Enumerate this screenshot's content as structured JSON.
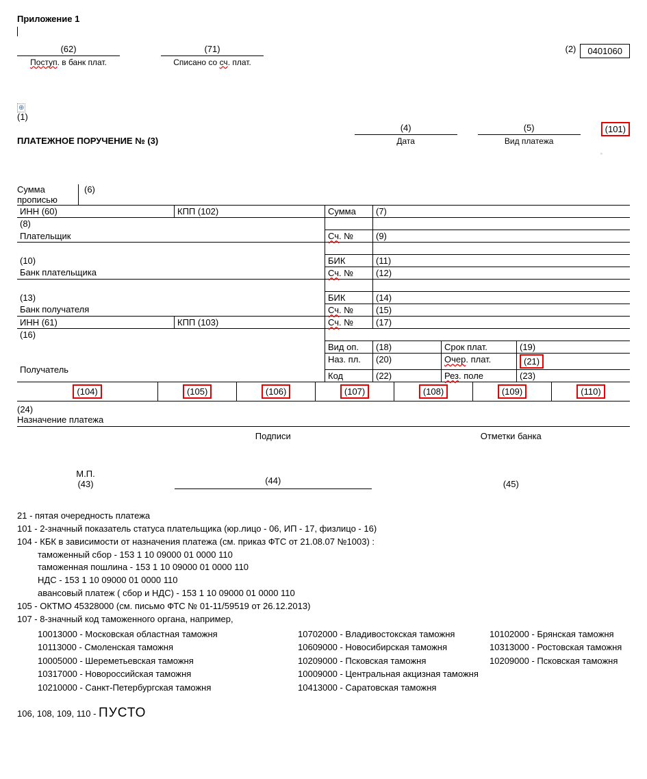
{
  "appendix": "Приложение 1",
  "top": {
    "f62": "(62)",
    "f62_label": "Поступ. в банк плат.",
    "f71": "(71)",
    "f71_label": "Списано со сч. плат.",
    "f2": "(2)",
    "code": "0401060"
  },
  "pp": {
    "num1": "(1)",
    "title": "ПЛАТЕЖНОЕ ПОРУЧЕНИЕ № (3)",
    "f4": "(4)",
    "date_label": "Дата",
    "f5": "(5)",
    "type_label": "Вид платежа",
    "f101": "(101)"
  },
  "form": {
    "sum_label": "Сумма прописью",
    "f6": "(6)",
    "inn60": "ИНН  (60)",
    "kpp102": "КПП (102)",
    "sum": "Сумма",
    "f7": "(7)",
    "f8": "(8)",
    "payer": "Плательщик",
    "sch": "Сч. №",
    "f9": "(9)",
    "f10": "(10)",
    "payer_bank": "Банк плательщика",
    "bik": "БИК",
    "f11": "(11)",
    "f12": "(12)",
    "f13": "(13)",
    "recv_bank": "Банк получателя",
    "f14": "(14)",
    "f15": "(15)",
    "inn61": "ИНН (61)",
    "kpp103": "КПП (103)",
    "f17": "(17)",
    "f16": "(16)",
    "recv": "Получатель",
    "vidop": "Вид оп.",
    "f18": "(18)",
    "srok": "Срок плат.",
    "f19": "(19)",
    "nazpl": "Наз. пл.",
    "f20": "(20)",
    "ocher": "Очер. плат.",
    "f21": "(21)",
    "kod": "Код",
    "f22": "(22)",
    "rez": "Рез. поле",
    "f23": "(23)",
    "f104": "(104)",
    "f105": "(105)",
    "f106": "(106)",
    "f107": "(107)",
    "f108": "(108)",
    "f109": "(109)",
    "f110": "(110)",
    "f24": "(24)",
    "purpose": "Назначение платежа",
    "podpisi": "Подписи",
    "otmetki": "Отметки банка",
    "mp": "М.П.",
    "f43": "(43)",
    "f44": "(44)",
    "f45": "(45)"
  },
  "notes": {
    "n21": "21 - пятая очередность платежа",
    "n101": "101 - 2-значный показатель статуса плательщика  (юр.лицо - 06, ИП - 17, физлицо - 16)",
    "n104": "104 - КБК в зависимости от назначения платежа (см. приказ ФТС от 21.08.07 №1003) :",
    "n104_a": "таможенный сбор - 153 1 10 09000 01 0000 110",
    "n104_b": "таможенная пошлина - 153 1 10 09000 01 0000 110",
    "n104_c": "НДС - 153 1 10 09000 01 0000 110",
    "n104_d": "авансовый платеж ( сбор и НДС) - 153 1 10 09000 01 0000 110",
    "n105": "105 - ОКТМО 45328000 (см. письмо ФТС № 01-11/59519 от 26.12.2013)",
    "n107": "107 - 8-значный код таможенного органа, например,",
    "customs": [
      [
        "10013000 - Московская областная таможня",
        "10702000 - Владивостокская таможня",
        "10102000 - Брянская таможня"
      ],
      [
        "10113000 - Смоленская таможня",
        "10609000 - Новосибирская таможня",
        "10313000 - Ростовская таможня"
      ],
      [
        "10005000 - Шереметьевская таможня",
        "10209000 - Псковская таможня",
        "10209000 - Псковская таможня"
      ],
      [
        "10317000 - Новороссийская таможня",
        "10009000 - Центральная акцизная таможня",
        ""
      ],
      [
        "10210000 - Санкт-Петербургская таможня",
        "10413000 - Саратовская таможня",
        ""
      ]
    ],
    "empty_prefix": "106, 108, 109, 110 - ",
    "empty_word": "ПУСТО"
  },
  "style": {
    "red": "#e60000",
    "spell_labels": {
      "postup": "Поступ",
      "vbank": ". в банк плат.",
      "spisano": "Списано со ",
      "sch": "сч",
      "plat": ". плат.",
      "schno": "Сч",
      "no": ". №",
      "ocher_pre": "Очер",
      "ocher_suf": ". плат.",
      "rez_pre": "Рез",
      "rez_suf": ". поле"
    }
  }
}
